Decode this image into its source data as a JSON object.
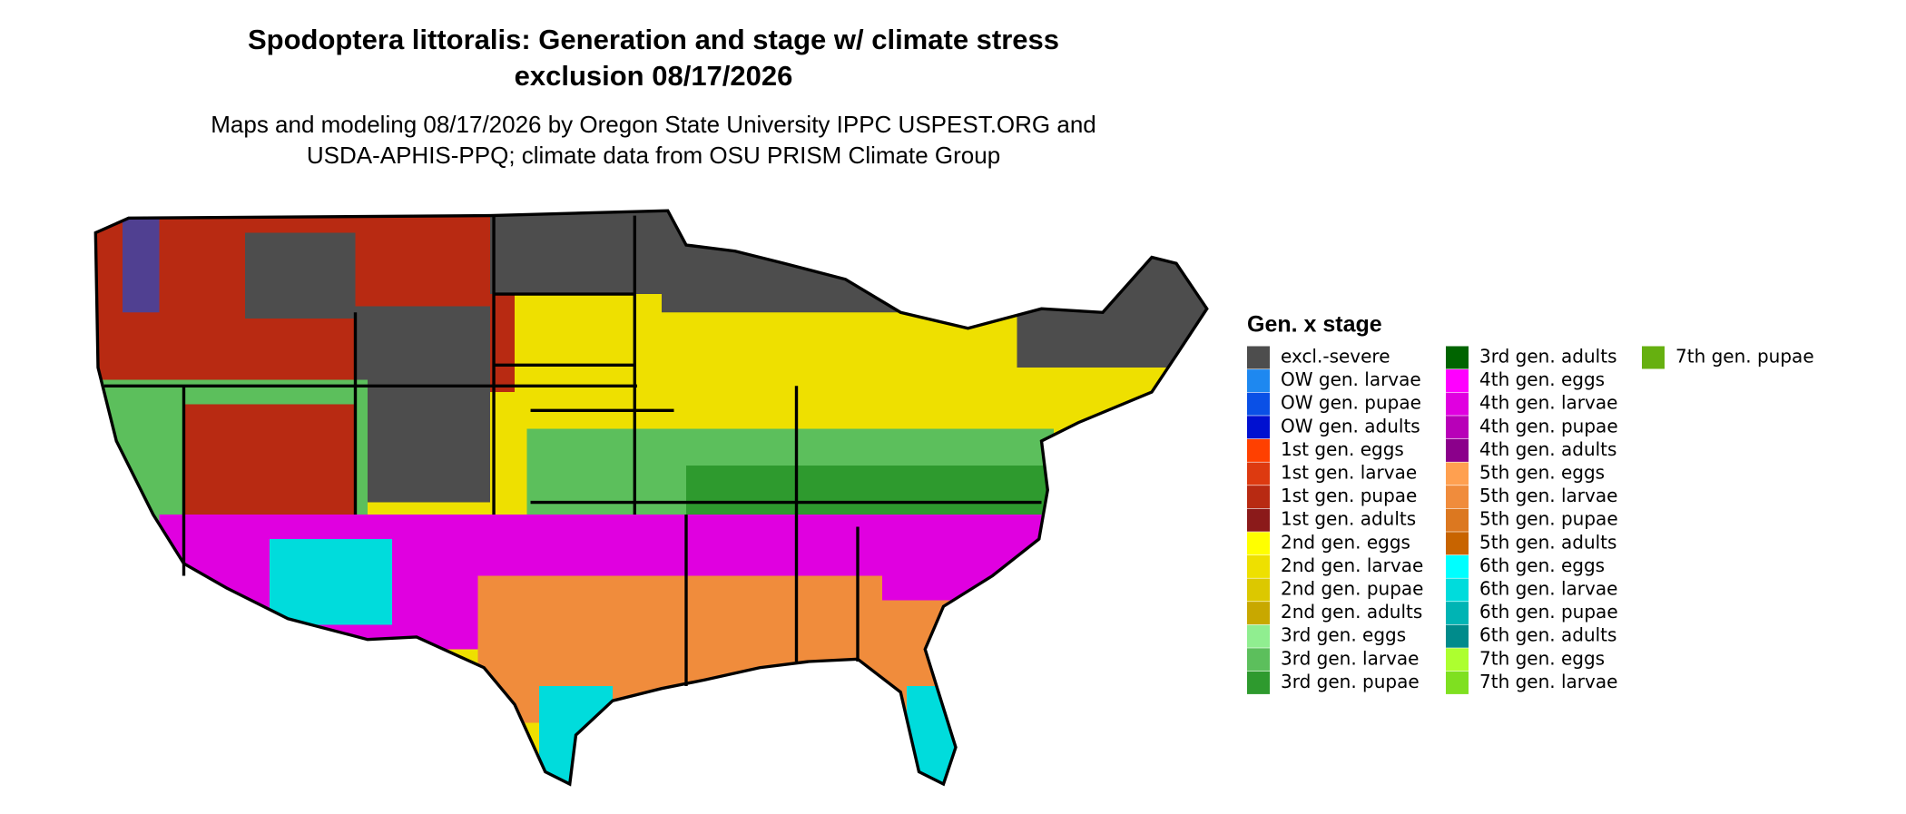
{
  "title": {
    "line1": "Spodoptera littoralis: Generation and stage w/ climate stress",
    "line2": "exclusion 08/17/2026"
  },
  "subtitle": {
    "line1": "Maps and modeling 08/17/2026 by Oregon State University IPPC USPEST.ORG and",
    "line2": "USDA-APHIS-PPQ; climate data from OSU PRISM Climate Group"
  },
  "legend": {
    "title": "Gen. x stage",
    "items": [
      {
        "label": "excl.-severe",
        "color": "#4d4d4d"
      },
      {
        "label": "OW gen. larvae",
        "color": "#1e88f0"
      },
      {
        "label": "OW gen. pupae",
        "color": "#0a50e6"
      },
      {
        "label": "OW gen. adults",
        "color": "#0010d0"
      },
      {
        "label": "1st gen. eggs",
        "color": "#ff4000"
      },
      {
        "label": "1st gen. larvae",
        "color": "#dd3a10"
      },
      {
        "label": "1st gen. pupae",
        "color": "#b82a12"
      },
      {
        "label": "1st gen. adults",
        "color": "#8b1a1a"
      },
      {
        "label": "2nd gen. eggs",
        "color": "#ffff00"
      },
      {
        "label": "2nd gen. larvae",
        "color": "#eee000"
      },
      {
        "label": "2nd gen. pupae",
        "color": "#dcc800"
      },
      {
        "label": "2nd gen. adults",
        "color": "#c8a800"
      },
      {
        "label": "3rd gen. eggs",
        "color": "#90ee90"
      },
      {
        "label": "3rd gen. larvae",
        "color": "#5cbf5c"
      },
      {
        "label": "3rd gen. pupae",
        "color": "#2e9a2e"
      },
      {
        "label": "3rd gen. adults",
        "color": "#006400"
      },
      {
        "label": "4th gen. eggs",
        "color": "#ff00ff"
      },
      {
        "label": "4th gen. larvae",
        "color": "#e000e0"
      },
      {
        "label": "4th gen. pupae",
        "color": "#b800b8"
      },
      {
        "label": "4th gen. adults",
        "color": "#8b008b"
      },
      {
        "label": "5th gen. eggs",
        "color": "#ffa050"
      },
      {
        "label": "5th gen. larvae",
        "color": "#f08c3c"
      },
      {
        "label": "5th gen. pupae",
        "color": "#dc7820"
      },
      {
        "label": "5th gen. adults",
        "color": "#c86400"
      },
      {
        "label": "6th gen. eggs",
        "color": "#00ffff"
      },
      {
        "label": "6th gen. larvae",
        "color": "#00dcdc"
      },
      {
        "label": "6th gen. pupae",
        "color": "#00b4b4"
      },
      {
        "label": "6th gen. adults",
        "color": "#008b8b"
      },
      {
        "label": "7th gen. eggs",
        "color": "#adff2f"
      },
      {
        "label": "7th gen. larvae",
        "color": "#7fe020"
      },
      {
        "label": "7th gen. pupae",
        "color": "#66b010"
      }
    ]
  }
}
